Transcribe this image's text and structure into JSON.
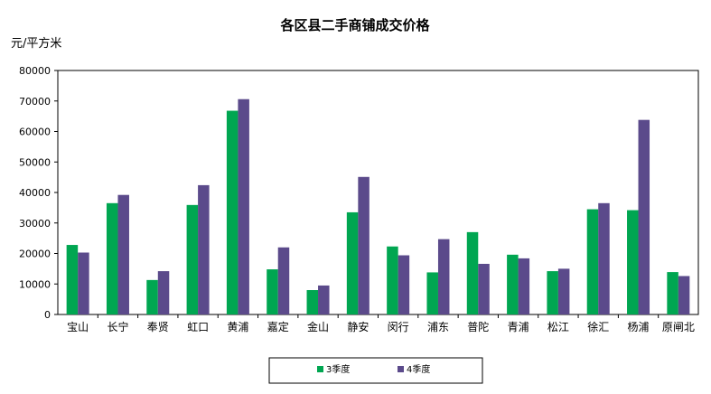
{
  "chart_data": {
    "type": "bar",
    "title": "各区县二手商铺成交价格",
    "ylabel": "元/平方米",
    "xlabel": "",
    "ylim": [
      0,
      80000
    ],
    "yticks": [
      "0",
      "10000",
      "20000",
      "30000",
      "40000",
      "50000",
      "60000",
      "70000",
      "80000"
    ],
    "grid": false,
    "legend_position": "bottom",
    "categories": [
      "宝山",
      "长宁",
      "奉贤",
      "虹口",
      "黄浦",
      "嘉定",
      "金山",
      "静安",
      "闵行",
      "浦东",
      "普陀",
      "青浦",
      "松江",
      "徐汇",
      "杨浦",
      "原闸北"
    ],
    "series": [
      {
        "name": "3季度",
        "color": "#00a651",
        "values": [
          22800,
          36500,
          11300,
          35900,
          66800,
          14800,
          8000,
          33500,
          22300,
          13800,
          27000,
          19600,
          14200,
          34500,
          34200,
          13900
        ]
      },
      {
        "name": "4季度",
        "color": "#5b4a8b",
        "values": [
          20300,
          39200,
          14200,
          42400,
          70600,
          22000,
          9500,
          45100,
          19400,
          24700,
          16600,
          18400,
          15000,
          36500,
          63800,
          12600
        ]
      }
    ]
  }
}
